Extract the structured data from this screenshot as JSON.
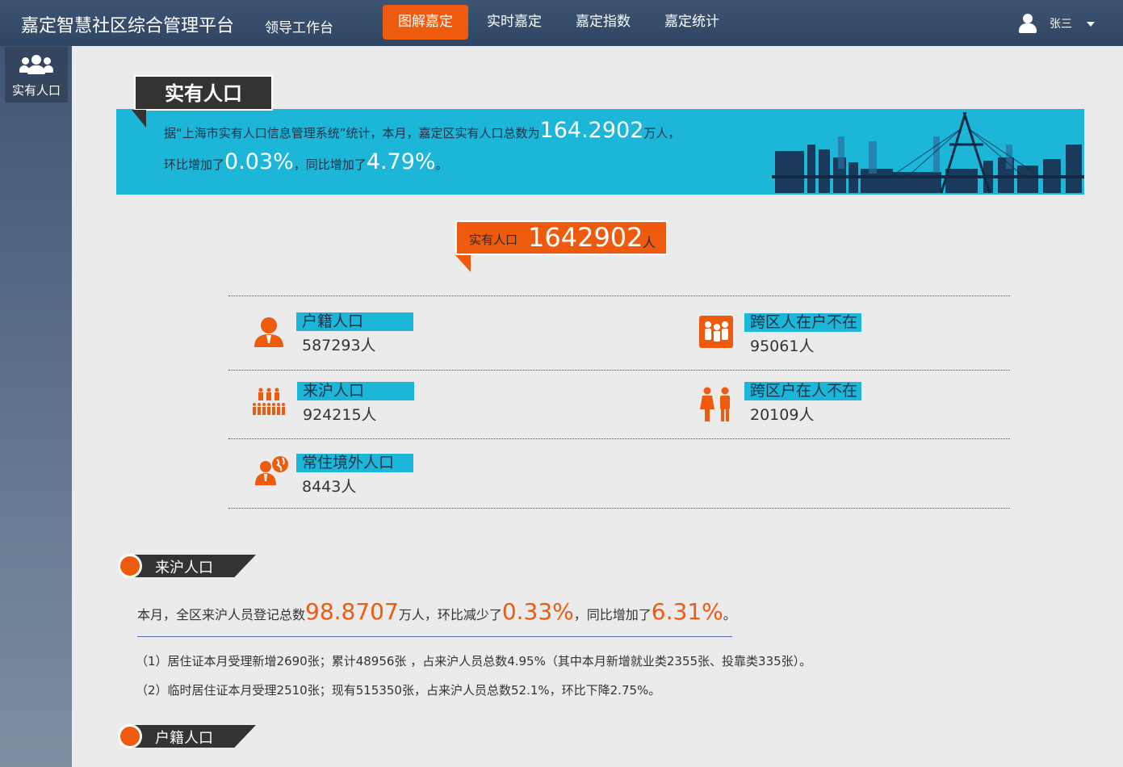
{
  "header": {
    "title": "嘉定智慧社区综合管理平台",
    "subtitle": "领导工作台",
    "nav": [
      "图解嘉定",
      "实时嘉定",
      "嘉定指数",
      "嘉定统计"
    ],
    "active_nav": "图解嘉定",
    "user_name": "张三"
  },
  "sidebar": {
    "items": [
      {
        "label": "实有人口",
        "icon": "people-icon"
      }
    ]
  },
  "section_title": "实有人口",
  "banner": {
    "line1_pre": "据“上海市实有人口信息管理系统”统计，本月，嘉定区实有人口总数为",
    "total_wan": "164.2902",
    "line1_post": "万人，",
    "line2_pre": "环比增加了",
    "mom": "0.03%",
    "line2_mid": "，同比增加了",
    "yoy": "4.79%",
    "line2_post": "。"
  },
  "total": {
    "label": "实有人口",
    "value": "1642902",
    "unit": "人"
  },
  "stats": [
    {
      "label": "户籍人口",
      "value": "587293人",
      "icon": "person-icon"
    },
    {
      "label": "跨区人在户不在",
      "value": "95061人",
      "icon": "family-icon"
    },
    {
      "label": "来沪人口",
      "value": "924215人",
      "icon": "crowd-icon"
    },
    {
      "label": "跨区户在人不在",
      "value": "20109人",
      "icon": "couple-icon"
    },
    {
      "label": "常住境外人口",
      "value": "8443人",
      "icon": "globe-person-icon"
    }
  ],
  "migrant": {
    "heading": "来沪人口",
    "s_pre": "本月，全区来沪人员登记总数",
    "total_wan": "98.8707",
    "s_mid1": "万人，环比减少了",
    "mom": "0.33%",
    "s_mid2": "，同比增加了",
    "yoy": "6.31%",
    "s_post": "。",
    "para1": "（1）居住证本月受理新增2690张；累计48956张 ，占来沪人员总数4.95%（其中本月新增就业类2355张、投靠类335张）。",
    "para2": "（2）临时居住证本月受理2510张；现有515350张，占来沪人员总数52.1%，环比下降2.75%。"
  },
  "registered": {
    "heading": "户籍人口"
  },
  "colors": {
    "accent": "#ee5b0f",
    "banner": "#1cb6d8",
    "header": "#2e4563"
  }
}
